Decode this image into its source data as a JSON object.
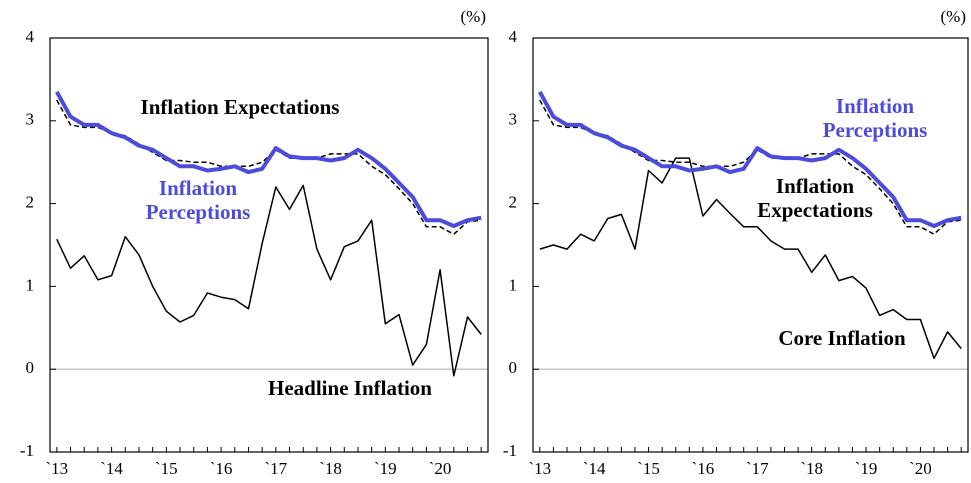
{
  "chart_data": [
    {
      "type": "line",
      "unit": "(%)",
      "categories": [
        "`13",
        null,
        null,
        null,
        "`14",
        null,
        null,
        null,
        "`15",
        null,
        null,
        null,
        "`16",
        null,
        null,
        null,
        "`17",
        null,
        null,
        null,
        "`18",
        null,
        null,
        null,
        "`19",
        null,
        null,
        null,
        "`20",
        null,
        null,
        null
      ],
      "ylim": [
        -1,
        4
      ],
      "yticks": [
        -1,
        0,
        1,
        2,
        3,
        4
      ],
      "series": [
        {
          "name": "Headline Inflation",
          "color": "#000000",
          "style": "solid",
          "values": [
            1.57,
            1.22,
            1.37,
            1.08,
            1.13,
            1.6,
            1.38,
            1.0,
            0.7,
            0.57,
            0.65,
            0.92,
            0.87,
            0.84,
            0.73,
            1.52,
            2.2,
            1.93,
            2.22,
            1.45,
            1.08,
            1.48,
            1.55,
            1.8,
            0.55,
            0.66,
            0.05,
            0.3,
            1.2,
            -0.08,
            0.63,
            0.42
          ]
        },
        {
          "name": "Inflation Expectations",
          "color": "#000000",
          "style": "dashed",
          "values": [
            3.25,
            2.95,
            2.92,
            2.92,
            2.85,
            2.82,
            2.72,
            2.62,
            2.52,
            2.52,
            2.5,
            2.5,
            2.45,
            2.45,
            2.45,
            2.5,
            2.65,
            2.55,
            2.55,
            2.55,
            2.6,
            2.6,
            2.6,
            2.45,
            2.35,
            2.18,
            2.0,
            1.72,
            1.72,
            1.63,
            1.78,
            1.8
          ]
        },
        {
          "name": "Inflation Perceptions",
          "color": "#4b4bdc",
          "style": "thick",
          "values": [
            3.35,
            3.05,
            2.95,
            2.95,
            2.85,
            2.8,
            2.7,
            2.65,
            2.55,
            2.45,
            2.45,
            2.4,
            2.42,
            2.45,
            2.38,
            2.42,
            2.67,
            2.57,
            2.55,
            2.55,
            2.52,
            2.55,
            2.65,
            2.55,
            2.42,
            2.25,
            2.08,
            1.8,
            1.8,
            1.73,
            1.8,
            1.83
          ]
        }
      ]
    },
    {
      "type": "line",
      "unit": "(%)",
      "categories": [
        "`13",
        null,
        null,
        null,
        "`14",
        null,
        null,
        null,
        "`15",
        null,
        null,
        null,
        "`16",
        null,
        null,
        null,
        "`17",
        null,
        null,
        null,
        "`18",
        null,
        null,
        null,
        "`19",
        null,
        null,
        null,
        "`20",
        null,
        null,
        null
      ],
      "ylim": [
        -1,
        4
      ],
      "yticks": [
        -1,
        0,
        1,
        2,
        3,
        4
      ],
      "series": [
        {
          "name": "Core Inflation",
          "color": "#000000",
          "style": "solid",
          "values": [
            1.45,
            1.5,
            1.45,
            1.63,
            1.55,
            1.82,
            1.87,
            1.45,
            2.4,
            2.25,
            2.55,
            2.55,
            1.85,
            2.05,
            1.88,
            1.72,
            1.72,
            1.55,
            1.45,
            1.45,
            1.17,
            1.38,
            1.07,
            1.12,
            0.98,
            0.65,
            0.72,
            0.6,
            0.6,
            0.13,
            0.45,
            0.25
          ]
        },
        {
          "name": "Inflation Expectations",
          "color": "#000000",
          "style": "dashed",
          "values": [
            3.25,
            2.95,
            2.92,
            2.92,
            2.85,
            2.82,
            2.72,
            2.62,
            2.52,
            2.52,
            2.5,
            2.5,
            2.45,
            2.45,
            2.45,
            2.5,
            2.65,
            2.55,
            2.55,
            2.55,
            2.6,
            2.6,
            2.6,
            2.45,
            2.35,
            2.18,
            2.0,
            1.72,
            1.72,
            1.63,
            1.78,
            1.8
          ]
        },
        {
          "name": "Inflation Perceptions",
          "color": "#4b4bdc",
          "style": "thick",
          "values": [
            3.35,
            3.05,
            2.95,
            2.95,
            2.85,
            2.8,
            2.7,
            2.65,
            2.55,
            2.45,
            2.45,
            2.4,
            2.42,
            2.45,
            2.38,
            2.42,
            2.67,
            2.57,
            2.55,
            2.55,
            2.52,
            2.55,
            2.65,
            2.55,
            2.42,
            2.25,
            2.08,
            1.8,
            1.8,
            1.73,
            1.8,
            1.83
          ]
        }
      ]
    }
  ]
}
